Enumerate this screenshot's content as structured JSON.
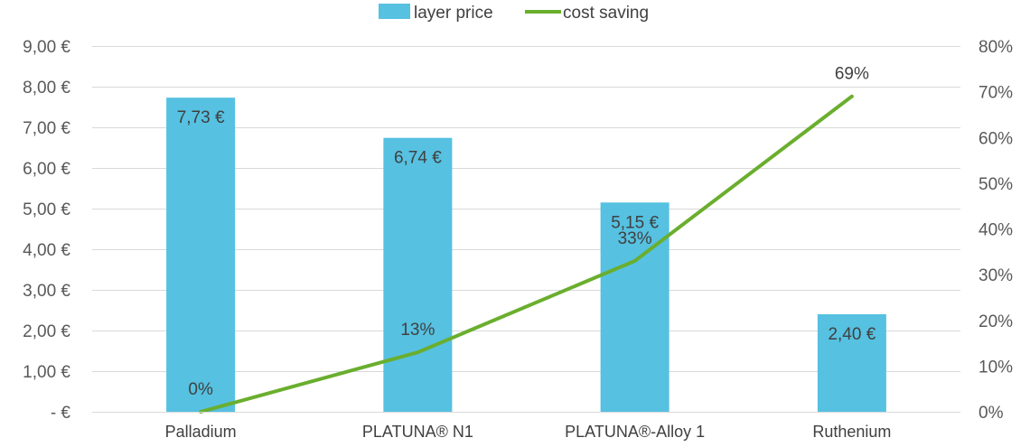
{
  "chart_data": {
    "type": "bar",
    "categories": [
      "Palladium",
      "PLATUNA® N1",
      "PLATUNA®-Alloy 1",
      "Ruthenium"
    ],
    "series": [
      {
        "name": "layer price",
        "type": "bar",
        "axis": "left",
        "color": "#56C1E1",
        "values": [
          7.73,
          6.74,
          5.15,
          2.4
        ],
        "labels": [
          "7,73 €",
          "6,74 €",
          "5,15 €",
          "2,40 €"
        ]
      },
      {
        "name": "cost saving",
        "type": "line",
        "axis": "right",
        "color": "#6AAE2E",
        "values": [
          0,
          13,
          33,
          69
        ],
        "labels": [
          "0%",
          "13%",
          "33%",
          "69%"
        ]
      }
    ],
    "y_left": {
      "ylim": [
        0,
        9
      ],
      "ticks": [
        0,
        1,
        2,
        3,
        4,
        5,
        6,
        7,
        8,
        9
      ],
      "tick_labels": [
        "-  €",
        "1,00 €",
        "2,00 €",
        "3,00 €",
        "4,00 €",
        "5,00 €",
        "6,00 €",
        "7,00 €",
        "8,00 €",
        "9,00 €"
      ]
    },
    "y_right": {
      "ylim": [
        0,
        80
      ],
      "ticks": [
        0,
        10,
        20,
        30,
        40,
        50,
        60,
        70,
        80
      ],
      "tick_labels": [
        "0%",
        "10%",
        "20%",
        "30%",
        "40%",
        "50%",
        "60%",
        "70%",
        "80%"
      ]
    },
    "grid": true,
    "gridline_color": "#D9D9D9",
    "legend_position": "top-center",
    "title": "",
    "xlabel": "",
    "ylabel": ""
  }
}
